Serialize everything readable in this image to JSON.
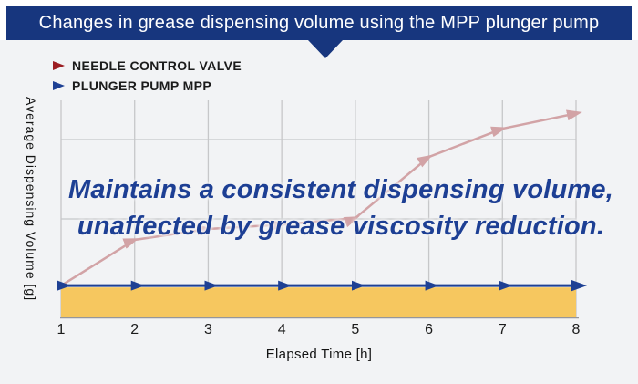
{
  "header": {
    "title": "Changes in grease dispensing volume using the MPP plunger pump"
  },
  "legend": {
    "items": [
      {
        "label": "NEEDLE CONTROL VALVE",
        "marker": "right-triangle",
        "color": "#9c1d22"
      },
      {
        "label": "PLUNGER PUMP MPP",
        "marker": "right-triangle",
        "color": "#1e4094"
      }
    ]
  },
  "overlay": {
    "line1": "Maintains a consistent dispensing volume,",
    "line2": "unaffected by grease viscosity reduction."
  },
  "chart_data": {
    "type": "line",
    "title": "Changes in grease dispensing volume using the MPP plunger pump",
    "xlabel": "Elapsed Time [h]",
    "ylabel": "Average Dispensing Volume [g]",
    "x": [
      1,
      2,
      3,
      4,
      5,
      6,
      7,
      8
    ],
    "x_tick_labels": [
      "1",
      "2",
      "3",
      "4",
      "5",
      "6",
      "7",
      "8"
    ],
    "y_axis_note": "y-axis has no numeric tick labels; series values are estimated as percent of plot height (0 = x-axis, 100 = plot top)",
    "grid": true,
    "legend_position": "top-left",
    "series": [
      {
        "name": "NEEDLE CONTROL VALVE",
        "color": "#d2a3a6",
        "marker": "arrow-along-line",
        "values": [
          15,
          36,
          41,
          43,
          46,
          74,
          87,
          94
        ]
      },
      {
        "name": "PLUNGER PUMP MPP",
        "color": "#1e4094",
        "marker": "arrow-along-line",
        "values": [
          15,
          15,
          15,
          15,
          15,
          15,
          15,
          15
        ],
        "band_fill_below": "#f6c75f"
      }
    ]
  },
  "colors": {
    "banner_bg": "#17367e",
    "panel_bg": "#f2f3f5",
    "overlay_text": "#1d3f94",
    "gridline": "#c6c7c9",
    "axis_line": "#95969a",
    "needle_valve_line": "#d2a3a6",
    "plunger_pump_line": "#1e4094",
    "band_fill": "#f6c75f",
    "legend_red": "#9c1d22"
  }
}
